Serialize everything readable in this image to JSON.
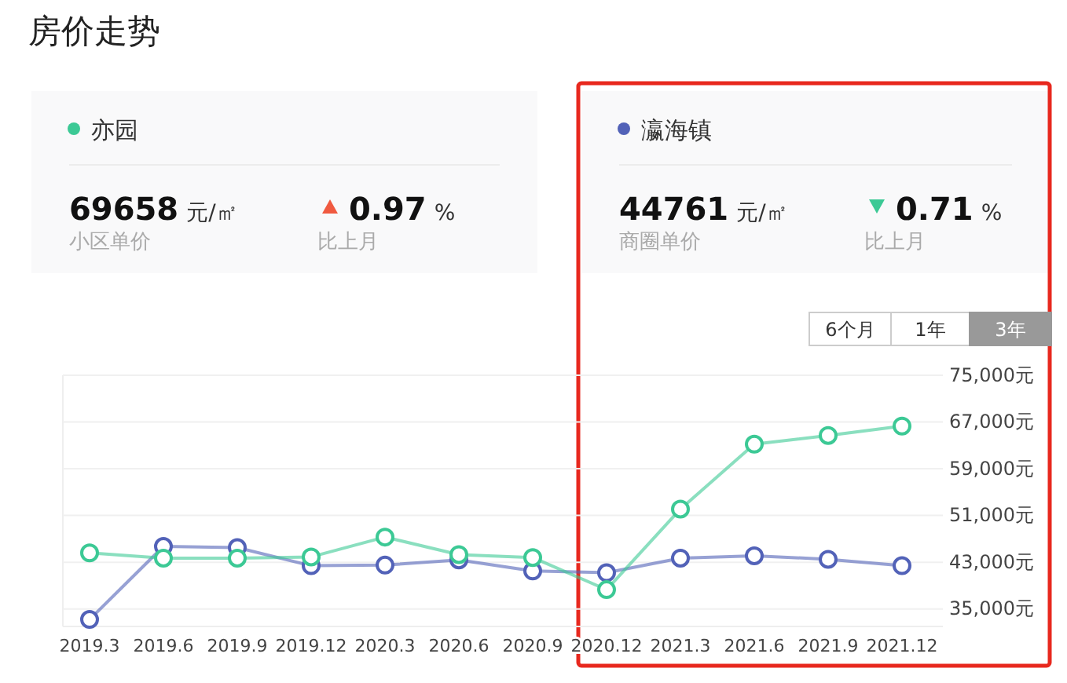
{
  "chart_data": {
    "type": "line",
    "title": "房价走势",
    "categories": [
      "2019.3",
      "2019.6",
      "2019.9",
      "2019.12",
      "2020.3",
      "2020.6",
      "2020.9",
      "2020.12",
      "2021.3",
      "2021.6",
      "2021.9",
      "2021.12"
    ],
    "series": [
      {
        "name": "亦园",
        "color": "#3cc995",
        "values": [
          44600,
          43700,
          43700,
          43900,
          47300,
          44300,
          43800,
          38300,
          52100,
          63200,
          64700,
          66300
        ]
      },
      {
        "name": "瀛海镇",
        "color": "#5262b8",
        "values": [
          33200,
          45700,
          45500,
          42400,
          42500,
          43400,
          41500,
          41200,
          43700,
          44100,
          43500,
          42400
        ]
      }
    ],
    "ylim": [
      32000,
      75000
    ],
    "yticks": [
      {
        "value": 35000,
        "label": "35,000元"
      },
      {
        "value": 43000,
        "label": "43,000元"
      },
      {
        "value": 51000,
        "label": "51,000元"
      },
      {
        "value": 59000,
        "label": "59,000元"
      },
      {
        "value": 67000,
        "label": "67,000元"
      },
      {
        "value": 75000,
        "label": "75,000元"
      }
    ],
    "grid": "y",
    "legend": "top",
    "marker": "circle",
    "annotations": [
      "69658",
      "元/㎡",
      "小区单价",
      "0.97",
      "%",
      "比上月",
      "44761",
      "元/㎡",
      "商圈单价",
      "0.71",
      "%",
      "比上月",
      "6个月",
      "1年",
      "3年"
    ]
  }
}
